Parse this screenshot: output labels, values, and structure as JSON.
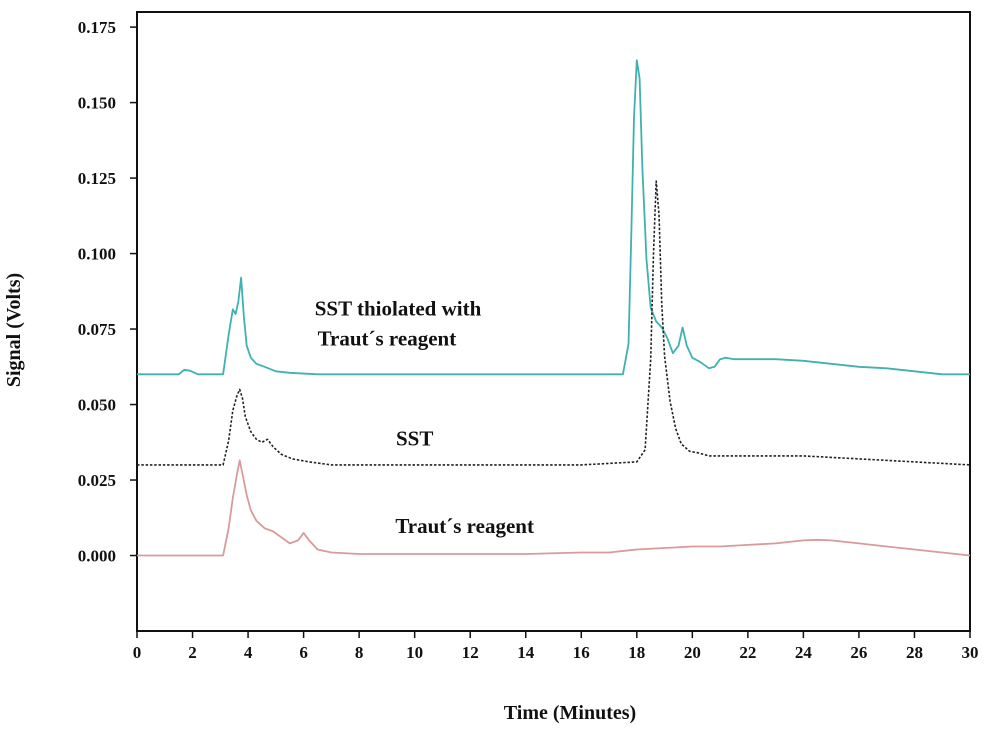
{
  "chart_data": {
    "type": "line",
    "xlabel": "Time (Minutes)",
    "ylabel": "Signal (Volts)",
    "xlim": [
      0,
      30
    ],
    "ylim": [
      -0.025,
      0.18
    ],
    "xticks": [
      0,
      2,
      4,
      6,
      8,
      10,
      12,
      14,
      16,
      18,
      20,
      22,
      24,
      26,
      28,
      30
    ],
    "yticks": [
      0.0,
      0.025,
      0.05,
      0.075,
      0.1,
      0.125,
      0.15,
      0.175
    ],
    "ytick_labels": [
      "0.000",
      "0.025",
      "0.050",
      "0.075",
      "0.100",
      "0.125",
      "0.150",
      "0.175"
    ],
    "grid": false,
    "annotations": [
      {
        "text": "SST thiolated with",
        "x": 9.4,
        "y": 0.0795,
        "series": 0
      },
      {
        "text": "Traut´s reagent",
        "x": 9.0,
        "y": 0.0695,
        "series": 0
      },
      {
        "text": "SST",
        "x": 10.0,
        "y": 0.0365,
        "series": 1
      },
      {
        "text": "Traut´s reagent",
        "x": 11.8,
        "y": 0.0075,
        "series": 2
      }
    ],
    "series": [
      {
        "color": "#3fb1b0",
        "dashed": false,
        "x": [
          0,
          1.5,
          1.7,
          1.9,
          2.2,
          3.1,
          3.3,
          3.45,
          3.55,
          3.65,
          3.75,
          3.85,
          3.95,
          4.1,
          4.3,
          4.6,
          5.0,
          5.5,
          6.5,
          8,
          10,
          12,
          14,
          15,
          16,
          17.5,
          17.7,
          17.8,
          17.9,
          18.0,
          18.1,
          18.2,
          18.35,
          18.5,
          18.7,
          18.9,
          19.1,
          19.3,
          19.5,
          19.65,
          19.8,
          20.0,
          20.3,
          20.6,
          20.8,
          21.0,
          21.2,
          21.5,
          22,
          23,
          24,
          25,
          26,
          27,
          28,
          29,
          30
        ],
        "values": [
          0.06,
          0.06,
          0.0615,
          0.0612,
          0.06,
          0.06,
          0.073,
          0.0815,
          0.08,
          0.084,
          0.092,
          0.079,
          0.0695,
          0.0655,
          0.0635,
          0.0625,
          0.061,
          0.0605,
          0.06,
          0.06,
          0.06,
          0.06,
          0.06,
          0.06,
          0.06,
          0.06,
          0.07,
          0.105,
          0.145,
          0.164,
          0.158,
          0.128,
          0.098,
          0.082,
          0.0775,
          0.0755,
          0.072,
          0.067,
          0.0695,
          0.0755,
          0.0695,
          0.0655,
          0.064,
          0.062,
          0.0625,
          0.065,
          0.0655,
          0.065,
          0.065,
          0.065,
          0.0645,
          0.0635,
          0.0625,
          0.062,
          0.061,
          0.06,
          0.06
        ]
      },
      {
        "color": "#222222",
        "dashed": true,
        "x": [
          0,
          3.1,
          3.3,
          3.45,
          3.6,
          3.7,
          3.8,
          3.9,
          4.1,
          4.3,
          4.5,
          4.7,
          4.9,
          5.2,
          5.6,
          6.2,
          7,
          8,
          10,
          12,
          14,
          16,
          18.0,
          18.3,
          18.5,
          18.6,
          18.7,
          18.8,
          18.9,
          19.0,
          19.2,
          19.4,
          19.6,
          19.9,
          20.2,
          20.6,
          21,
          22,
          24,
          26,
          28,
          30
        ],
        "values": [
          0.03,
          0.03,
          0.038,
          0.048,
          0.053,
          0.055,
          0.052,
          0.046,
          0.041,
          0.0385,
          0.0375,
          0.0385,
          0.036,
          0.0335,
          0.032,
          0.031,
          0.03,
          0.03,
          0.03,
          0.03,
          0.03,
          0.03,
          0.031,
          0.035,
          0.065,
          0.1,
          0.124,
          0.113,
          0.083,
          0.066,
          0.051,
          0.042,
          0.037,
          0.0345,
          0.034,
          0.033,
          0.033,
          0.033,
          0.033,
          0.032,
          0.031,
          0.03
        ]
      },
      {
        "color": "#d99a9a",
        "dashed": false,
        "x": [
          0,
          1,
          2,
          3.1,
          3.3,
          3.45,
          3.6,
          3.7,
          3.8,
          3.95,
          4.1,
          4.3,
          4.6,
          4.9,
          5.2,
          5.5,
          5.8,
          6.0,
          6.2,
          6.5,
          7,
          8,
          10,
          12,
          14,
          16,
          17,
          18,
          19,
          20,
          21,
          22,
          23,
          24,
          24.5,
          25,
          26,
          27,
          28,
          29,
          30
        ],
        "values": [
          0.0,
          0.0,
          0.0,
          0.0,
          0.009,
          0.019,
          0.027,
          0.0315,
          0.027,
          0.02,
          0.015,
          0.0115,
          0.009,
          0.008,
          0.006,
          0.004,
          0.005,
          0.0075,
          0.005,
          0.002,
          0.001,
          0.0005,
          0.0005,
          0.0005,
          0.0005,
          0.001,
          0.001,
          0.002,
          0.0025,
          0.003,
          0.003,
          0.0035,
          0.004,
          0.005,
          0.0052,
          0.005,
          0.004,
          0.003,
          0.002,
          0.001,
          0.0
        ]
      }
    ]
  }
}
